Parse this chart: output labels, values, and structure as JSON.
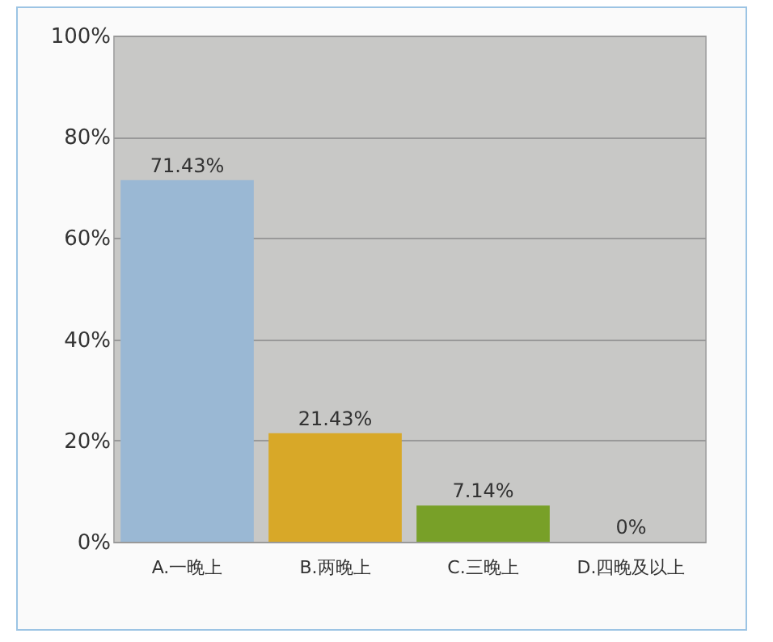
{
  "chart_data": {
    "type": "bar",
    "categories": [
      "A.一晚上",
      "B.两晚上",
      "C.三晚上",
      "D.四晚及以上"
    ],
    "values": [
      71.43,
      21.43,
      7.14,
      0
    ],
    "colors": [
      "#9ab8d4",
      "#d8a828",
      "#78a028",
      "#f0a078"
    ],
    "value_labels": [
      "71.43%",
      "21.43%",
      "7.14%",
      "0%"
    ],
    "ylim": [
      0,
      100
    ],
    "yticks": [
      {
        "value": 0,
        "label": "0%"
      },
      {
        "value": 20,
        "label": "20%"
      },
      {
        "value": 40,
        "label": "40%"
      },
      {
        "value": 60,
        "label": "60%"
      },
      {
        "value": 80,
        "label": "80%"
      },
      {
        "value": 100,
        "label": "100%"
      }
    ],
    "grid": "y"
  }
}
